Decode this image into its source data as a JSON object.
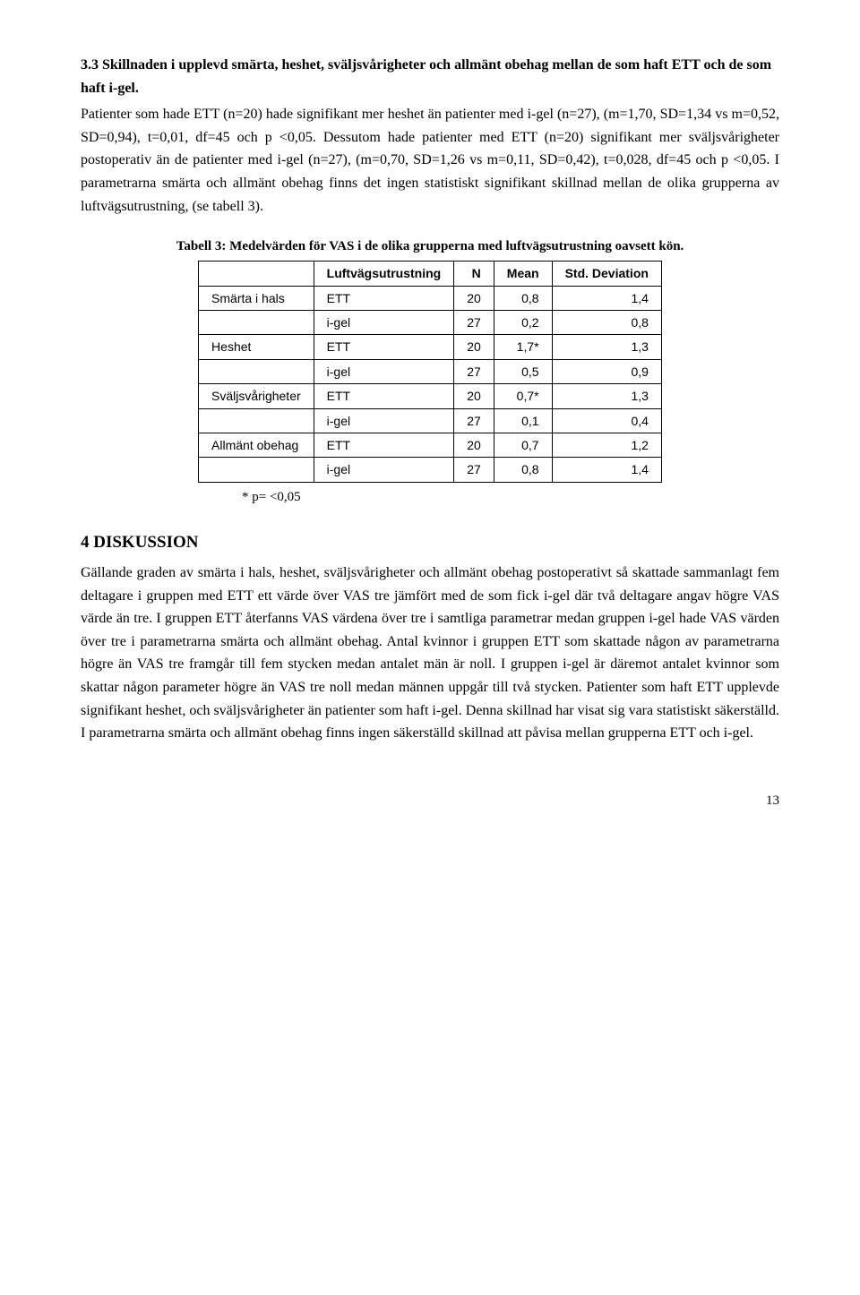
{
  "section_heading": "3.3 Skillnaden i upplevd smärta, heshet, sväljsvårigheter och allmänt obehag mellan de som haft ETT och de som haft i-gel.",
  "para1": "Patienter som hade ETT (n=20) hade signifikant mer heshet än patienter med i-gel (n=27), (m=1,70, SD=1,34 vs m=0,52, SD=0,94), t=0,01, df=45 och p <0,05. Dessutom hade patienter med ETT (n=20) signifikant mer sväljsvårigheter postoperativ än de patienter med i-gel (n=27), (m=0,70, SD=1,26 vs m=0,11, SD=0,42), t=0,028, df=45 och p <0,05. I parametrarna smärta och allmänt obehag finns det ingen statistiskt signifikant skillnad mellan de olika grupperna av luftvägsutrustning, (se tabell 3).",
  "table": {
    "caption": "Tabell 3: Medelvärden för VAS i de olika grupperna med luftvägsutrustning oavsett kön.",
    "headers": {
      "c1": "",
      "c2": "Luftvägsutrustning",
      "c3": "N",
      "c4": "Mean",
      "c5": "Std. Deviation"
    },
    "rows": [
      {
        "c1": "Smärta i hals",
        "c2": "ETT",
        "c3": "20",
        "c4": "0,8",
        "c5": "1,4"
      },
      {
        "c1": "",
        "c2": "i-gel",
        "c3": "27",
        "c4": "0,2",
        "c5": "0,8"
      },
      {
        "c1": "Heshet",
        "c2": "ETT",
        "c3": "20",
        "c4": "1,7*",
        "c5": "1,3"
      },
      {
        "c1": "",
        "c2": "i-gel",
        "c3": "27",
        "c4": "0,5",
        "c5": "0,9"
      },
      {
        "c1": "Sväljsvårigheter",
        "c2": "ETT",
        "c3": "20",
        "c4": "0,7*",
        "c5": "1,3"
      },
      {
        "c1": "",
        "c2": "i-gel",
        "c3": "27",
        "c4": "0,1",
        "c5": "0,4"
      },
      {
        "c1": "Allmänt obehag",
        "c2": "ETT",
        "c3": "20",
        "c4": "0,7",
        "c5": "1,2"
      },
      {
        "c1": "",
        "c2": "i-gel",
        "c3": "27",
        "c4": "0,8",
        "c5": "1,4"
      }
    ],
    "footnote": "* p= <0,05"
  },
  "h2": "4 DISKUSSION",
  "para2": "Gällande graden av smärta i hals, heshet, sväljsvårigheter och allmänt obehag postoperativt så skattade sammanlagt fem deltagare i gruppen med ETT ett värde över VAS tre jämfört med de som fick i-gel där två deltagare angav högre VAS värde än tre. I gruppen ETT återfanns VAS värdena över tre i samtliga parametrar medan gruppen i-gel hade VAS värden över tre i parametrarna smärta och allmänt obehag. Antal kvinnor i gruppen ETT som skattade någon av parametrarna högre än VAS tre framgår till fem stycken medan antalet män är noll. I gruppen i-gel är däremot antalet kvinnor som skattar någon parameter högre än VAS tre noll medan männen uppgår till två stycken. Patienter som haft ETT upplevde signifikant heshet, och sväljsvårigheter än patienter som haft i-gel. Denna skillnad har visat sig vara statistiskt säkerställd. I parametrarna smärta och allmänt obehag finns ingen säkerställd skillnad att påvisa mellan grupperna ETT och i-gel.",
  "page_number": "13"
}
